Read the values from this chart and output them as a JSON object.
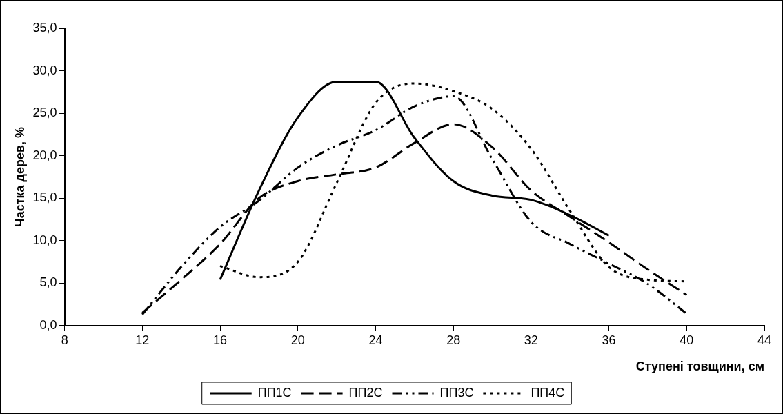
{
  "chart_data": {
    "type": "line",
    "xlabel": "Ступені товщини, см",
    "ylabel": "Частка дерев, %",
    "xlim": [
      8,
      44
    ],
    "xticks": [
      8,
      12,
      16,
      20,
      24,
      28,
      32,
      36,
      40,
      44
    ],
    "ylim": [
      0,
      35
    ],
    "yticks": [
      {
        "value": 0,
        "label": "0,0"
      },
      {
        "value": 5,
        "label": "5,0"
      },
      {
        "value": 10,
        "label": "10,0"
      },
      {
        "value": 15,
        "label": "15,0"
      },
      {
        "value": 20,
        "label": "20,0"
      },
      {
        "value": 25,
        "label": "25,0"
      },
      {
        "value": 30,
        "label": "30,0"
      },
      {
        "value": 35,
        "label": "35,0"
      }
    ],
    "grid": false,
    "legend": "bottom",
    "marker": "none",
    "series": [
      {
        "name": "ПП1С",
        "color": "#000000",
        "line_style": "solid",
        "x": [
          16,
          18,
          20,
          22,
          24,
          26,
          28,
          30,
          32,
          34,
          36
        ],
        "values": [
          5.4,
          15.9,
          24.5,
          28.7,
          28.7,
          22.1,
          17.0,
          15.3,
          14.8,
          13.0,
          10.6
        ]
      },
      {
        "name": "ПП2С",
        "color": "#000000",
        "line_style": "dashed",
        "x": [
          12,
          14,
          16,
          18,
          20,
          22,
          24,
          26,
          28,
          30,
          32,
          34,
          36,
          38,
          40
        ],
        "values": [
          1.5,
          5.4,
          9.6,
          15.0,
          17.0,
          17.8,
          18.6,
          21.5,
          23.7,
          21.0,
          15.9,
          12.8,
          9.8,
          6.6,
          3.6
        ]
      },
      {
        "name": "ПП3С",
        "color": "#000000",
        "line_style": "dashdot",
        "x": [
          12,
          14,
          16,
          18,
          20,
          22,
          24,
          26,
          28,
          30,
          32,
          34,
          36,
          38,
          40
        ],
        "values": [
          1.3,
          6.9,
          11.6,
          14.7,
          18.6,
          21.2,
          23.0,
          25.8,
          27.0,
          19.6,
          12.2,
          9.6,
          7.3,
          4.9,
          1.4
        ]
      },
      {
        "name": "ПП4С",
        "color": "#000000",
        "line_style": "dotted",
        "x": [
          16,
          18,
          20,
          22,
          24,
          26,
          28,
          30,
          32,
          34,
          36,
          38,
          40
        ],
        "values": [
          7.0,
          5.7,
          7.5,
          16.8,
          26.2,
          28.5,
          27.6,
          25.5,
          20.8,
          13.5,
          6.9,
          5.4,
          5.2
        ]
      }
    ]
  }
}
